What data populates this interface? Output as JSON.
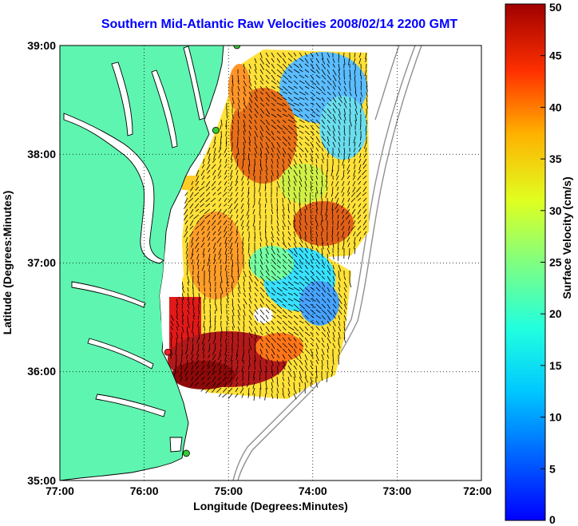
{
  "title": "Southern Mid-Atlantic Raw Velocities 2008/02/14 2200 GMT",
  "map": {
    "xlabel": "Longitude (Degrees:Minutes)",
    "ylabel": "Latitude (Degrees:Minutes)",
    "x_ticks": [
      "77:00",
      "76:00",
      "75:00",
      "74:00",
      "73:00",
      "72:00"
    ],
    "y_ticks": [
      "39:00",
      "38:00",
      "37:00",
      "36:00",
      "35:00"
    ],
    "lon_range": [
      -77,
      -72
    ],
    "lat_range": [
      35,
      39
    ],
    "grid": "dotted",
    "land_color": "#5ef5b0",
    "stations": [
      {
        "lon": -74.9,
        "lat": 39.0,
        "color": "#33cc33"
      },
      {
        "lon": -75.15,
        "lat": 38.22,
        "color": "#33cc33"
      },
      {
        "lon": -75.72,
        "lat": 36.18,
        "color": "#ff2222"
      },
      {
        "lon": -75.5,
        "lat": 35.25,
        "color": "#33cc33"
      }
    ]
  },
  "colorbar": {
    "label": "Surface Velocity (cm/s)",
    "ticks": [
      "50",
      "45",
      "40",
      "35",
      "30",
      "25",
      "20",
      "15",
      "10",
      "5",
      "0"
    ],
    "min": 0,
    "max": 50,
    "colormap": "jet"
  }
}
